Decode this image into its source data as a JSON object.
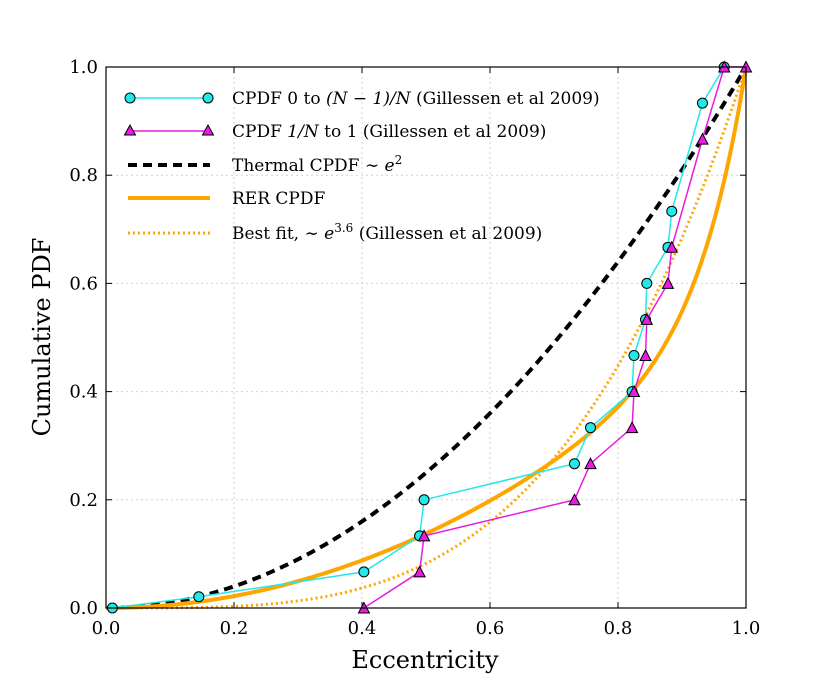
{
  "chart_data": {
    "type": "line",
    "title": "",
    "xlabel": "Eccentricity",
    "ylabel": "Cumulative PDF",
    "xlim": [
      0.0,
      1.0
    ],
    "ylim": [
      0.0,
      1.0
    ],
    "grid": true,
    "legend_position": "top-left",
    "x_ticks": [
      "0.0",
      "0.2",
      "0.4",
      "0.6",
      "0.8",
      "1.0"
    ],
    "y_ticks": [
      "0.0",
      "0.2",
      "0.4",
      "0.6",
      "0.8",
      "1.0"
    ],
    "series": [
      {
        "name": "cpdf-0",
        "label": "CPDF 0 to (N − 1)/N (Gillessen et al 2009)",
        "color": "#22e8e8",
        "marker": "circle",
        "line_style": "solid",
        "x": [
          0.01,
          0.145,
          0.403,
          0.49,
          0.497,
          0.732,
          0.757,
          0.822,
          0.825,
          0.843,
          0.845,
          0.878,
          0.884,
          0.932,
          0.966
        ],
        "y": [
          0.0,
          0.0208,
          0.0667,
          0.1333,
          0.2,
          0.2667,
          0.3333,
          0.4,
          0.4667,
          0.5333,
          0.6,
          0.6667,
          0.7333,
          0.9333,
          1.0
        ]
      },
      {
        "name": "cpdf-1n",
        "label": "CPDF 1/N to 1 (Gillessen et al 2009)",
        "color": "#e81ce0",
        "marker": "triangle",
        "line_style": "solid",
        "x": [
          0.403,
          0.49,
          0.497,
          0.732,
          0.757,
          0.822,
          0.825,
          0.843,
          0.845,
          0.878,
          0.884,
          0.932,
          0.966,
          1.0
        ],
        "y": [
          0.0,
          0.0667,
          0.1333,
          0.2,
          0.2667,
          0.3333,
          0.4,
          0.4667,
          0.5333,
          0.6,
          0.6667,
          0.8667,
          1.0,
          1.0
        ]
      },
      {
        "name": "thermal",
        "label": "Thermal CPDF ∼ e²",
        "color": "#000000",
        "line_style": "dashed",
        "formula": "e^2"
      },
      {
        "name": "rer",
        "label": "RER CPDF",
        "color": "#ffa500",
        "line_style": "solid",
        "formula": "approx"
      },
      {
        "name": "best-fit",
        "label": "Best fit, ∼ e^3.6 (Gillessen et al 2009)",
        "color": "#ffa500",
        "line_style": "dotted",
        "formula": "e^3.6"
      }
    ],
    "legend": {
      "cpdf0_prefix": "CPDF 0 to ",
      "cpdf0_math": "(N − 1)/N",
      "cpdf0_suffix": " (Gillessen et al 2009)",
      "cpdf1_prefix": "CPDF ",
      "cpdf1_math": "1/N",
      "cpdf1_suffix": " to 1 (Gillessen et al 2009)",
      "thermal_prefix": "Thermal CPDF ∼ ",
      "thermal_base": "e",
      "thermal_exp": "2",
      "rer": "RER CPDF",
      "best_prefix": "Best fit, ∼ ",
      "best_base": "e",
      "best_exp": "3.6",
      "best_suffix": " (Gillessen et al 2009)"
    }
  }
}
